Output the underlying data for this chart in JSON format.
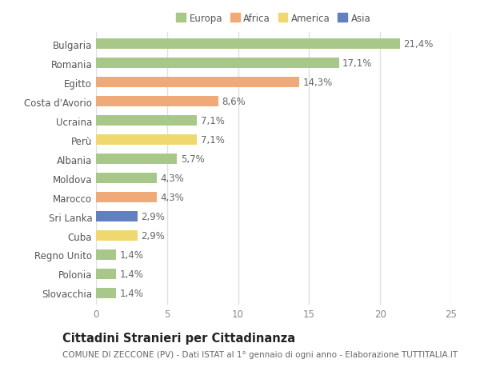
{
  "countries": [
    "Bulgaria",
    "Romania",
    "Egitto",
    "Costa d'Avorio",
    "Ucraina",
    "Perù",
    "Albania",
    "Moldova",
    "Marocco",
    "Sri Lanka",
    "Cuba",
    "Regno Unito",
    "Polonia",
    "Slovacchia"
  ],
  "values": [
    21.4,
    17.1,
    14.3,
    8.6,
    7.1,
    7.1,
    5.7,
    4.3,
    4.3,
    2.9,
    2.9,
    1.4,
    1.4,
    1.4
  ],
  "labels": [
    "21,4%",
    "17,1%",
    "14,3%",
    "8,6%",
    "7,1%",
    "7,1%",
    "5,7%",
    "4,3%",
    "4,3%",
    "2,9%",
    "2,9%",
    "1,4%",
    "1,4%",
    "1,4%"
  ],
  "categories": [
    "Europa",
    "Africa",
    "America",
    "Asia"
  ],
  "continent": [
    "Europa",
    "Europa",
    "Africa",
    "Africa",
    "Europa",
    "America",
    "Europa",
    "Europa",
    "Africa",
    "Asia",
    "America",
    "Europa",
    "Europa",
    "Europa"
  ],
  "colors": {
    "Europa": "#a8c88a",
    "Africa": "#f0aa78",
    "America": "#f0d870",
    "Asia": "#6080c0"
  },
  "title": "Cittadini Stranieri per Cittadinanza",
  "subtitle": "COMUNE DI ZECCONE (PV) - Dati ISTAT al 1° gennaio di ogni anno - Elaborazione TUTTITALIA.IT",
  "xlim": [
    0,
    25
  ],
  "xticks": [
    0,
    5,
    10,
    15,
    20,
    25
  ],
  "background_color": "#ffffff",
  "bar_height": 0.55,
  "grid_color": "#e8e8e8",
  "label_fontsize": 8.5,
  "tick_fontsize": 8.5,
  "title_fontsize": 10.5,
  "subtitle_fontsize": 7.5
}
